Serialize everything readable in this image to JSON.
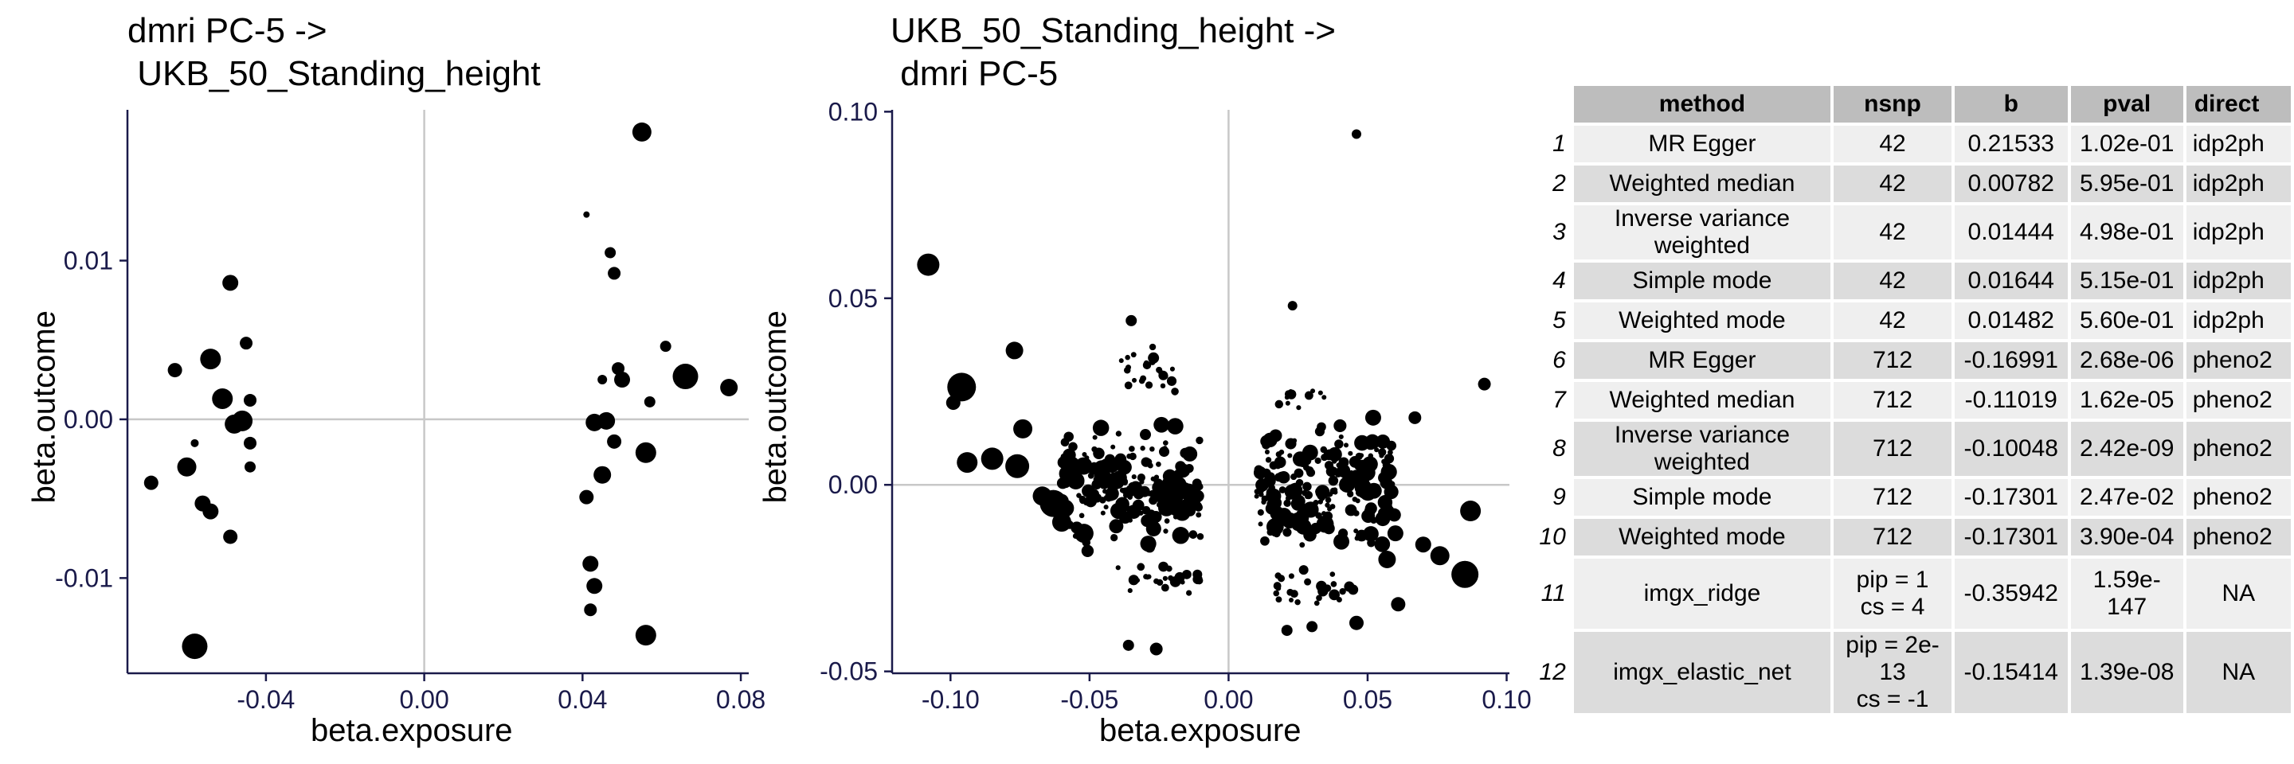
{
  "chart_data": [
    {
      "type": "scatter",
      "title": "dmri PC-5 ->\n UKB_50_Standing_height",
      "xlabel": "beta.exposure",
      "ylabel": "beta.outcome",
      "xlim": [
        -0.075,
        0.082
      ],
      "ylim": [
        -0.016,
        0.0195
      ],
      "xticks": [
        -0.04,
        0.0,
        0.04,
        0.08
      ],
      "xtick_labels": [
        "-0.04",
        "0.00",
        "0.04",
        "0.08"
      ],
      "yticks": [
        -0.01,
        0.0,
        0.01
      ],
      "ytick_labels": [
        "-0.01",
        "0.00",
        "0.01"
      ],
      "ref_lines": {
        "x": 0,
        "y": 0
      },
      "points": [
        {
          "x": -0.069,
          "y": -0.004,
          "s": 9
        },
        {
          "x": -0.063,
          "y": 0.0031,
          "s": 9
        },
        {
          "x": -0.06,
          "y": -0.003,
          "s": 12
        },
        {
          "x": -0.058,
          "y": -0.0015,
          "s": 5
        },
        {
          "x": -0.056,
          "y": -0.0053,
          "s": 10
        },
        {
          "x": -0.054,
          "y": 0.0038,
          "s": 13
        },
        {
          "x": -0.054,
          "y": -0.0058,
          "s": 10
        },
        {
          "x": -0.051,
          "y": 0.0013,
          "s": 13
        },
        {
          "x": -0.049,
          "y": 0.0086,
          "s": 10
        },
        {
          "x": -0.049,
          "y": -0.0074,
          "s": 9
        },
        {
          "x": -0.048,
          "y": -0.0003,
          "s": 12
        },
        {
          "x": -0.046,
          "y": -0.0001,
          "s": 13
        },
        {
          "x": -0.045,
          "y": 0.0048,
          "s": 8
        },
        {
          "x": -0.044,
          "y": 0.0012,
          "s": 8
        },
        {
          "x": -0.044,
          "y": -0.0015,
          "s": 8
        },
        {
          "x": -0.044,
          "y": -0.003,
          "s": 7
        },
        {
          "x": -0.058,
          "y": -0.0143,
          "s": 16
        },
        {
          "x": 0.041,
          "y": 0.0129,
          "s": 4
        },
        {
          "x": 0.047,
          "y": 0.0105,
          "s": 7
        },
        {
          "x": 0.048,
          "y": 0.0092,
          "s": 8
        },
        {
          "x": 0.045,
          "y": 0.0025,
          "s": 6
        },
        {
          "x": 0.049,
          "y": 0.0032,
          "s": 8
        },
        {
          "x": 0.05,
          "y": 0.0025,
          "s": 10
        },
        {
          "x": 0.043,
          "y": -0.0002,
          "s": 11
        },
        {
          "x": 0.046,
          "y": -0.0001,
          "s": 11
        },
        {
          "x": 0.048,
          "y": -0.0014,
          "s": 9
        },
        {
          "x": 0.045,
          "y": -0.0035,
          "s": 11
        },
        {
          "x": 0.041,
          "y": -0.0049,
          "s": 9
        },
        {
          "x": 0.042,
          "y": -0.0091,
          "s": 10
        },
        {
          "x": 0.043,
          "y": -0.0105,
          "s": 10
        },
        {
          "x": 0.042,
          "y": -0.012,
          "s": 8
        },
        {
          "x": 0.055,
          "y": 0.0181,
          "s": 12
        },
        {
          "x": 0.057,
          "y": 0.0011,
          "s": 7
        },
        {
          "x": 0.061,
          "y": 0.0046,
          "s": 7
        },
        {
          "x": 0.056,
          "y": -0.0021,
          "s": 13
        },
        {
          "x": 0.056,
          "y": -0.0136,
          "s": 13
        },
        {
          "x": 0.066,
          "y": 0.0027,
          "s": 16
        },
        {
          "x": 0.077,
          "y": 0.002,
          "s": 11
        }
      ]
    },
    {
      "type": "scatter",
      "title": "UKB_50_Standing_height ->\n dmri PC-5",
      "xlabel": "beta.exposure",
      "ylabel": "beta.outcome",
      "xlim": [
        -0.121,
        0.101
      ],
      "ylim": [
        -0.0505,
        0.1005
      ],
      "xticks": [
        -0.1,
        -0.05,
        0.0,
        0.05,
        0.1
      ],
      "xtick_labels": [
        "-0.10",
        "-0.05",
        "0.00",
        "0.05",
        "0.10"
      ],
      "yticks": [
        -0.05,
        0.0,
        0.05,
        0.1
      ],
      "ytick_labels": [
        "-0.05",
        "0.00",
        "0.05",
        "0.10"
      ],
      "ref_lines": {
        "x": 0,
        "y": 0
      },
      "clusters": [
        {
          "x_range": [
            -0.06,
            -0.01
          ],
          "y_range": [
            -0.02,
            0.02
          ],
          "count": 230,
          "seed": 7,
          "size_range": [
            3,
            11
          ]
        },
        {
          "x_range": [
            -0.04,
            -0.01
          ],
          "y_range": [
            -0.03,
            -0.02
          ],
          "count": 25,
          "seed": 13,
          "size_range": [
            3,
            7
          ]
        },
        {
          "x_range": [
            -0.04,
            -0.015
          ],
          "y_range": [
            0.02,
            0.04
          ],
          "count": 22,
          "seed": 19,
          "size_range": [
            3,
            7
          ]
        },
        {
          "x_range": [
            0.01,
            0.06
          ],
          "y_range": [
            -0.02,
            0.02
          ],
          "count": 220,
          "seed": 29,
          "size_range": [
            3,
            11
          ]
        },
        {
          "x_range": [
            0.015,
            0.045
          ],
          "y_range": [
            -0.035,
            -0.02
          ],
          "count": 25,
          "seed": 37,
          "size_range": [
            3,
            7
          ]
        },
        {
          "x_range": [
            0.015,
            0.04
          ],
          "y_range": [
            0.02,
            0.028
          ],
          "count": 12,
          "seed": 43,
          "size_range": [
            3,
            7
          ]
        }
      ],
      "points": [
        {
          "x": -0.108,
          "y": 0.059,
          "s": 14
        },
        {
          "x": -0.096,
          "y": 0.0262,
          "s": 18
        },
        {
          "x": -0.099,
          "y": 0.022,
          "s": 9
        },
        {
          "x": -0.094,
          "y": 0.006,
          "s": 13
        },
        {
          "x": -0.085,
          "y": 0.007,
          "s": 14
        },
        {
          "x": -0.077,
          "y": 0.036,
          "s": 11
        },
        {
          "x": -0.074,
          "y": 0.015,
          "s": 12
        },
        {
          "x": -0.076,
          "y": 0.005,
          "s": 15
        },
        {
          "x": -0.067,
          "y": -0.003,
          "s": 12
        },
        {
          "x": -0.063,
          "y": -0.005,
          "s": 17
        },
        {
          "x": -0.06,
          "y": -0.01,
          "s": 12
        },
        {
          "x": -0.052,
          "y": -0.013,
          "s": 12
        },
        {
          "x": -0.036,
          "y": -0.043,
          "s": 7
        },
        {
          "x": -0.026,
          "y": -0.044,
          "s": 8
        },
        {
          "x": -0.035,
          "y": 0.044,
          "s": 7
        },
        {
          "x": -0.027,
          "y": 0.034,
          "s": 7
        },
        {
          "x": 0.046,
          "y": 0.094,
          "s": 6
        },
        {
          "x": 0.023,
          "y": 0.048,
          "s": 6
        },
        {
          "x": 0.092,
          "y": 0.027,
          "s": 8
        },
        {
          "x": 0.085,
          "y": -0.024,
          "s": 17
        },
        {
          "x": 0.087,
          "y": -0.007,
          "s": 13
        },
        {
          "x": 0.076,
          "y": -0.019,
          "s": 12
        },
        {
          "x": 0.07,
          "y": -0.016,
          "s": 10
        },
        {
          "x": 0.067,
          "y": 0.018,
          "s": 8
        },
        {
          "x": 0.06,
          "y": -0.013,
          "s": 10
        },
        {
          "x": 0.057,
          "y": -0.02,
          "s": 11
        },
        {
          "x": 0.046,
          "y": -0.037,
          "s": 9
        },
        {
          "x": 0.052,
          "y": 0.018,
          "s": 10
        },
        {
          "x": 0.061,
          "y": -0.032,
          "s": 9
        },
        {
          "x": 0.021,
          "y": -0.039,
          "s": 7
        },
        {
          "x": 0.03,
          "y": -0.038,
          "s": 7
        }
      ]
    }
  ],
  "table": {
    "headers": [
      "method",
      "nsnp",
      "b",
      "pval",
      "direct"
    ],
    "rows": [
      {
        "idx": "1",
        "method": "MR Egger",
        "nsnp": "42",
        "b": "0.21533",
        "pval": "1.02e-01",
        "direction": "idp2ph"
      },
      {
        "idx": "2",
        "method": "Weighted median",
        "nsnp": "42",
        "b": "0.00782",
        "pval": "5.95e-01",
        "direction": "idp2ph"
      },
      {
        "idx": "3",
        "method": "Inverse variance weighted",
        "nsnp": "42",
        "b": "0.01444",
        "pval": "4.98e-01",
        "direction": "idp2ph"
      },
      {
        "idx": "4",
        "method": "Simple mode",
        "nsnp": "42",
        "b": "0.01644",
        "pval": "5.15e-01",
        "direction": "idp2ph"
      },
      {
        "idx": "5",
        "method": "Weighted mode",
        "nsnp": "42",
        "b": "0.01482",
        "pval": "5.60e-01",
        "direction": "idp2ph"
      },
      {
        "idx": "6",
        "method": "MR Egger",
        "nsnp": "712",
        "b": "-0.16991",
        "pval": "2.68e-06",
        "direction": "pheno2"
      },
      {
        "idx": "7",
        "method": "Weighted median",
        "nsnp": "712",
        "b": "-0.11019",
        "pval": "1.62e-05",
        "direction": "pheno2"
      },
      {
        "idx": "8",
        "method": "Inverse variance weighted",
        "nsnp": "712",
        "b": "-0.10048",
        "pval": "2.42e-09",
        "direction": "pheno2"
      },
      {
        "idx": "9",
        "method": "Simple mode",
        "nsnp": "712",
        "b": "-0.17301",
        "pval": "2.47e-02",
        "direction": "pheno2"
      },
      {
        "idx": "10",
        "method": "Weighted mode",
        "nsnp": "712",
        "b": "-0.17301",
        "pval": "3.90e-04",
        "direction": "pheno2"
      },
      {
        "idx": "11",
        "method": "imgx_ridge",
        "nsnp_line1": "pip = 1",
        "nsnp_line2": "cs = 4",
        "b": "-0.35942",
        "pval": "1.59e-147",
        "direction": "NA"
      },
      {
        "idx": "12",
        "method": "imgx_elastic_net",
        "nsnp_line1": "pip = 2e-13",
        "nsnp_line2": "cs = -1",
        "b": "-0.15414",
        "pval": "1.39e-08",
        "direction": "NA"
      }
    ]
  }
}
